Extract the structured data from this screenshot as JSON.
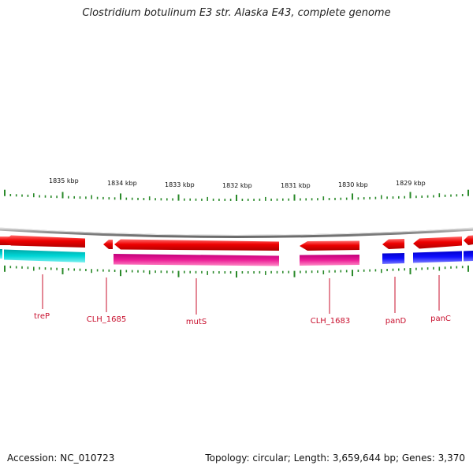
{
  "title": "Clostridium botulinum E3 str. Alaska E43, complete genome",
  "footer": {
    "accession": "Accession: NC_010723",
    "summary": "Topology: circular; Length: 3,659,644 bp; Genes: 3,370"
  },
  "kbp_labels": [
    "1835 kbp",
    "1834 kbp",
    "1833 kbp",
    "1832 kbp",
    "1831 kbp",
    "1830 kbp",
    "1829 kbp"
  ],
  "gene_labels": [
    "treP",
    "CLH_1685",
    "mutS",
    "CLH_1683",
    "panD",
    "panC"
  ],
  "colors": {
    "forward_red": "#ee0000",
    "cyan": "#00c8c8",
    "magenta": "#e0148c",
    "blue": "#0000ee",
    "backbone": "#8c8c8c",
    "tick": "#2a8a2a",
    "label": "#c8102e"
  }
}
